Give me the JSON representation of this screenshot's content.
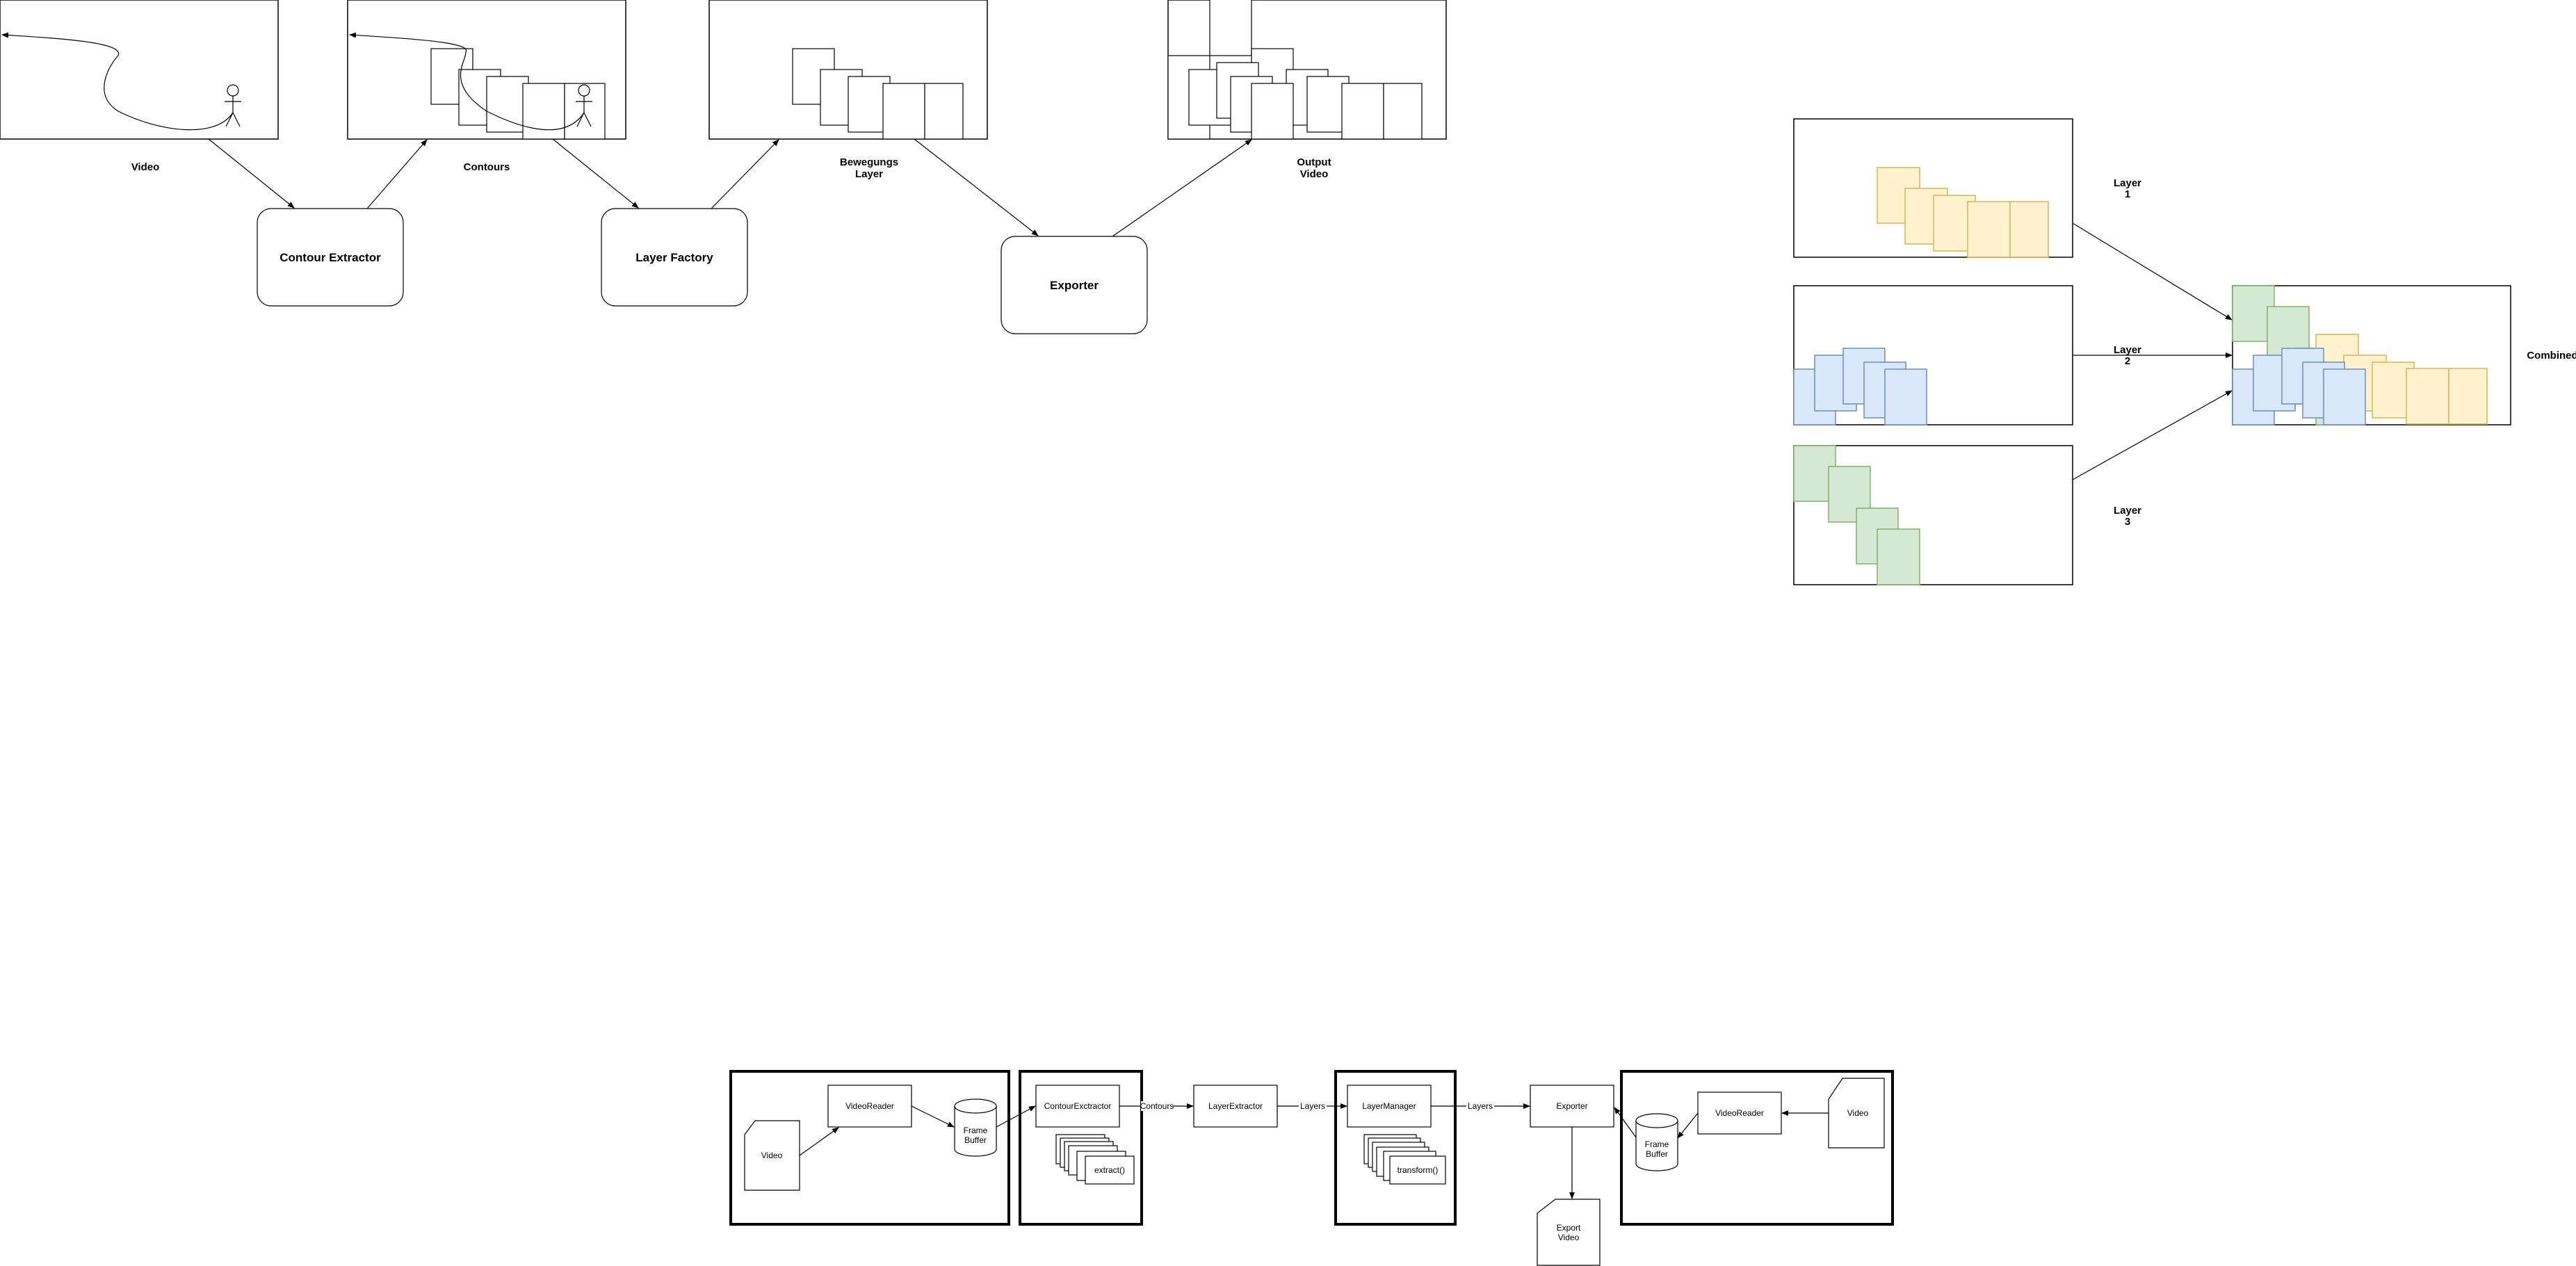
{
  "top_pipeline": {
    "frames": {
      "video": "Video",
      "contours": "Contours",
      "bewegungs_layer": [
        "Bewegungs",
        "Layer"
      ],
      "output_video": [
        "Output",
        "Video"
      ]
    },
    "processors": {
      "contour_extractor": "Contour Extractor",
      "layer_factory": "Layer Factory",
      "exporter": "Exporter"
    }
  },
  "layers_panel": {
    "layer1": [
      "Layer",
      "1"
    ],
    "layer2": [
      "Layer",
      "2"
    ],
    "layer3": [
      "Layer",
      "3"
    ],
    "combined": "Combined",
    "colors": {
      "layer1": "#fff2cc",
      "layer2": "#dae8fc",
      "layer3": "#d5e8d4"
    }
  },
  "bottom_pipeline": {
    "video_in": "Video",
    "video_reader": "VideoReader",
    "frame_buffer": [
      "Frame",
      "Buffer"
    ],
    "contour_extractor": "ContourExctractor",
    "extract": "extract()",
    "edge_contours": "Contours",
    "layer_extractor": "LayerExtractor",
    "edge_layers_1": "Layers",
    "layer_manager": "LayerManager",
    "transform": "transform()",
    "edge_layers_2": "Layers",
    "exporter": "Exporter",
    "export_video": [
      "Export",
      "Video"
    ],
    "frame_buffer_2": [
      "Frame",
      "Buffer"
    ],
    "video_reader_2": "VideoReader",
    "video_in_2": "Video"
  }
}
